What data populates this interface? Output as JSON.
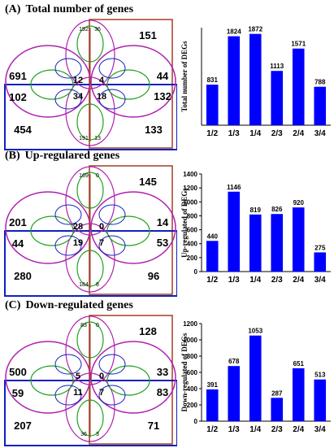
{
  "panels": [
    {
      "id": "A",
      "letter": "(A)",
      "title": "Total number of genes",
      "venn": {
        "right_top": "151",
        "left_top": "691",
        "right_mid": "44",
        "left_mid": "102",
        "right_mid2": "132",
        "left_bottom": "454",
        "right_bottom": "133",
        "center_labels": [
          "12",
          "4",
          "34",
          "18"
        ],
        "tiny_top": [
          "192",
          "36"
        ],
        "tiny_bottom": [
          "191",
          "13"
        ]
      },
      "chart_data": {
        "type": "bar",
        "categories": [
          "1/2",
          "1/3",
          "1/4",
          "2/3",
          "2/4",
          "3/4"
        ],
        "values": [
          831,
          1824,
          1872,
          1113,
          1571,
          788
        ],
        "ylabel": "Total number of DEGs",
        "ylim": [
          0,
          2000
        ],
        "yticks": [],
        "bar_color": "#0000ff"
      }
    },
    {
      "id": "B",
      "letter": "(B)",
      "title": "Up-regulared genes",
      "venn": {
        "right_top": "145",
        "left_top": "201",
        "right_mid": "14",
        "left_mid": "44",
        "right_mid2": "53",
        "left_bottom": "280",
        "right_bottom": "96",
        "center_labels": [
          "28",
          "0",
          "19",
          "7"
        ],
        "tiny_top": [
          "169",
          "0"
        ],
        "tiny_bottom": [
          "184",
          "8"
        ]
      },
      "chart_data": {
        "type": "bar",
        "categories": [
          "1/2",
          "1/3",
          "1/4",
          "2/3",
          "2/4",
          "3/4"
        ],
        "values": [
          440,
          1146,
          819,
          826,
          920,
          275
        ],
        "ylabel": "Up-regulated of DEGs",
        "ylim": [
          0,
          1400
        ],
        "yticks": [
          "0",
          "200",
          "400",
          "600",
          "800",
          "1000",
          "1200",
          "1400"
        ],
        "bar_color": "#0000ff"
      }
    },
    {
      "id": "C",
      "letter": "(C)",
      "title": "Down-regulated genes",
      "venn": {
        "right_top": "128",
        "left_top": "500",
        "right_mid": "33",
        "left_mid": "59",
        "right_mid2": "83",
        "left_bottom": "207",
        "right_bottom": "71",
        "center_labels": [
          "5",
          "0",
          "11",
          "7"
        ],
        "tiny_top": [
          "83",
          "0"
        ],
        "tiny_bottom": [
          "36",
          "3"
        ]
      },
      "chart_data": {
        "type": "bar",
        "categories": [
          "1/2",
          "1/3",
          "1/4",
          "2/3",
          "2/4",
          "3/4"
        ],
        "values": [
          391,
          678,
          1053,
          287,
          651,
          513
        ],
        "ylabel": "Down-regulated of DEGs",
        "ylim": [
          0,
          1200
        ],
        "yticks": [
          "0",
          "200",
          "400",
          "600",
          "800",
          "1000",
          "1200"
        ],
        "bar_color": "#0000ff"
      }
    }
  ]
}
